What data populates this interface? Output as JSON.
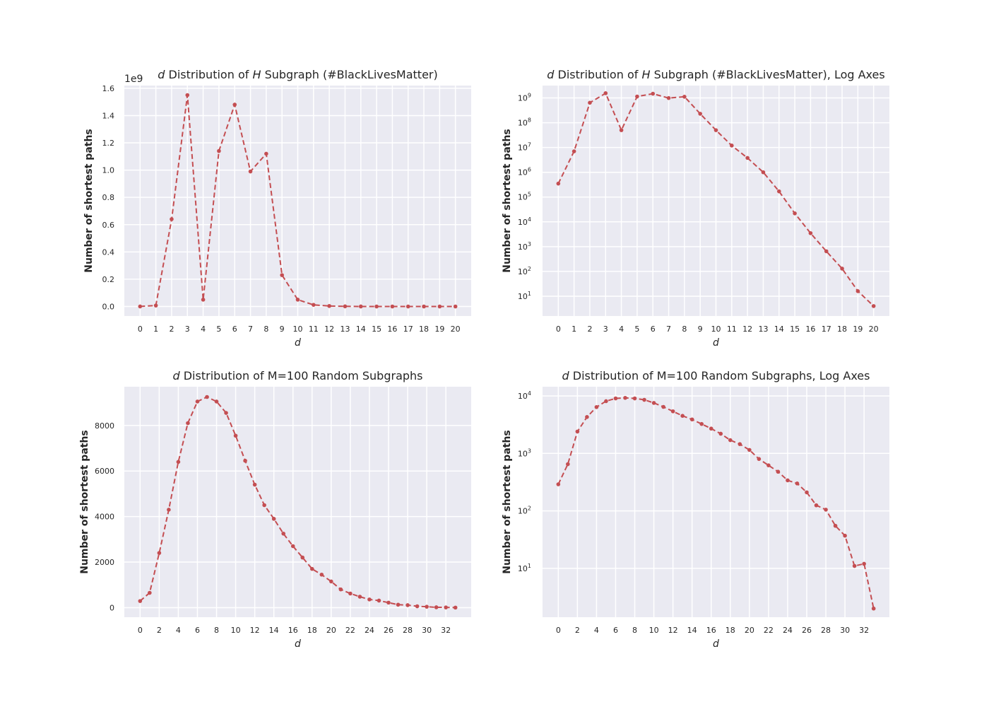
{
  "chart_data": [
    {
      "type": "line",
      "title": "d Distribution of H Subgraph (#BlackLivesMatter)",
      "title_italic": [
        "d",
        "H"
      ],
      "xlabel": "d",
      "ylabel": "Number of shortest paths",
      "y_offset_label": "1e9",
      "y_scale": "linear",
      "y_tick_scale": 1000000000,
      "xlim": [
        -1,
        21
      ],
      "ylim": [
        -70000000,
        1620000000
      ],
      "x_ticks": [
        0,
        1,
        2,
        3,
        4,
        5,
        6,
        7,
        8,
        9,
        10,
        11,
        12,
        13,
        14,
        15,
        16,
        17,
        18,
        19,
        20
      ],
      "y_ticks": [
        0.0,
        0.2,
        0.4,
        0.6,
        0.8,
        1.0,
        1.2,
        1.4,
        1.6
      ],
      "y_tick_labels": [
        "0.0",
        "0.2",
        "0.4",
        "0.6",
        "0.8",
        "1.0",
        "1.2",
        "1.4",
        "1.6"
      ],
      "grid": true,
      "line_style": "dashed",
      "color": "#c44e52",
      "x": [
        0,
        1,
        2,
        3,
        4,
        5,
        6,
        7,
        8,
        9,
        10,
        11,
        12,
        13,
        14,
        15,
        16,
        17,
        18,
        19,
        20
      ],
      "y": [
        350000,
        7000000,
        640000000,
        1550000000,
        50000000,
        1140000000,
        1480000000,
        990000000,
        1120000000,
        230000000,
        50000000,
        12000000,
        3800000,
        1000000,
        170000,
        22000,
        3500,
        650,
        130,
        16,
        4
      ]
    },
    {
      "type": "line",
      "title": "d Distribution of H Subgraph (#BlackLivesMatter), Log Axes",
      "title_italic": [
        "d",
        "H"
      ],
      "xlabel": "d",
      "ylabel": "Number of shortest paths",
      "y_scale": "log",
      "xlim": [
        -1,
        21
      ],
      "ylim_log10": [
        0.2,
        9.5
      ],
      "x_ticks": [
        0,
        1,
        2,
        3,
        4,
        5,
        6,
        7,
        8,
        9,
        10,
        11,
        12,
        13,
        14,
        15,
        16,
        17,
        18,
        19,
        20
      ],
      "y_ticks_exp": [
        1,
        2,
        3,
        4,
        5,
        6,
        7,
        8,
        9
      ],
      "grid": true,
      "line_style": "dashed",
      "color": "#c44e52",
      "x": [
        0,
        1,
        2,
        3,
        4,
        5,
        6,
        7,
        8,
        9,
        10,
        11,
        12,
        13,
        14,
        15,
        16,
        17,
        18,
        19,
        20
      ],
      "y": [
        350000,
        7000000,
        640000000,
        1550000000,
        50000000,
        1140000000,
        1480000000,
        990000000,
        1120000000,
        230000000,
        50000000,
        12000000,
        3800000,
        1000000,
        170000,
        22000,
        3500,
        650,
        130,
        16,
        4
      ]
    },
    {
      "type": "line",
      "title": "d Distribution of M=100 Random Subgraphs",
      "title_italic": [
        "d"
      ],
      "xlabel": "d",
      "ylabel": "Number of shortest paths",
      "y_scale": "linear",
      "y_tick_scale": 1,
      "xlim": [
        -1.65,
        34.65
      ],
      "ylim": [
        -420,
        9700
      ],
      "x_ticks": [
        0,
        2,
        4,
        6,
        8,
        10,
        12,
        14,
        16,
        18,
        20,
        22,
        24,
        26,
        28,
        30,
        32
      ],
      "y_ticks": [
        0,
        2000,
        4000,
        6000,
        8000
      ],
      "y_tick_labels": [
        "0",
        "2000",
        "4000",
        "6000",
        "8000"
      ],
      "grid": true,
      "line_style": "dashed",
      "color": "#c44e52",
      "x": [
        0,
        1,
        2,
        3,
        4,
        5,
        6,
        7,
        8,
        9,
        10,
        11,
        12,
        13,
        14,
        15,
        16,
        17,
        18,
        19,
        20,
        21,
        22,
        23,
        24,
        25,
        26,
        27,
        28,
        29,
        30,
        31,
        32,
        33
      ],
      "y": [
        290,
        650,
        2400,
        4300,
        6400,
        8100,
        9050,
        9250,
        9050,
        8550,
        7550,
        6450,
        5400,
        4500,
        3900,
        3250,
        2700,
        2200,
        1700,
        1450,
        1150,
        800,
        620,
        480,
        360,
        310,
        220,
        130,
        110,
        60,
        40,
        15,
        10,
        3
      ]
    },
    {
      "type": "line",
      "title": "d Distribution of M=100 Random Subgraphs, Log Axes",
      "title_italic": [
        "d"
      ],
      "xlabel": "d",
      "ylabel": "Number of shortest paths",
      "y_scale": "log",
      "xlim": [
        -1.65,
        34.65
      ],
      "ylim_log10": [
        0.15,
        4.16
      ],
      "x_ticks": [
        0,
        2,
        4,
        6,
        8,
        10,
        12,
        14,
        16,
        18,
        20,
        22,
        24,
        26,
        28,
        30,
        32
      ],
      "y_ticks_exp": [
        1,
        2,
        3,
        4
      ],
      "grid": true,
      "line_style": "dashed",
      "color": "#c44e52",
      "x": [
        0,
        1,
        2,
        3,
        4,
        5,
        6,
        7,
        8,
        9,
        10,
        11,
        12,
        13,
        14,
        15,
        16,
        17,
        18,
        19,
        20,
        21,
        22,
        23,
        24,
        25,
        26,
        27,
        28,
        29,
        30,
        31,
        32,
        33
      ],
      "y": [
        290,
        650,
        2400,
        4300,
        6400,
        8100,
        9050,
        9250,
        9050,
        8550,
        7550,
        6450,
        5400,
        4500,
        3900,
        3250,
        2700,
        2200,
        1700,
        1450,
        1150,
        800,
        620,
        480,
        340,
        300,
        210,
        125,
        105,
        55,
        37,
        11,
        12,
        2
      ]
    }
  ]
}
